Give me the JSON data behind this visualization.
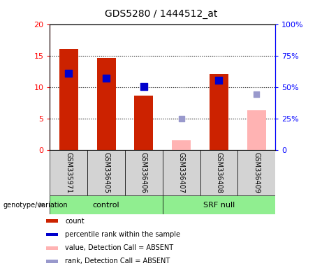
{
  "title": "GDS5280 / 1444512_at",
  "samples": [
    "GSM335971",
    "GSM336405",
    "GSM336406",
    "GSM336407",
    "GSM336408",
    "GSM336409"
  ],
  "bar_color_present": "#cc2200",
  "bar_color_absent": "#ffb3b3",
  "dot_color_present": "#0000cc",
  "dot_color_absent": "#9999cc",
  "count_present": [
    16.1,
    14.6,
    8.7,
    null,
    12.1,
    null
  ],
  "count_absent": [
    null,
    null,
    null,
    1.6,
    null,
    6.3
  ],
  "rank_present": [
    12.2,
    11.4,
    10.1,
    null,
    11.1,
    null
  ],
  "rank_absent": [
    null,
    null,
    null,
    5.0,
    null,
    8.9
  ],
  "ylim_left": [
    0,
    20
  ],
  "ylim_right": [
    0,
    100
  ],
  "yticks_left": [
    0,
    5,
    10,
    15,
    20
  ],
  "yticks_right": [
    0,
    25,
    50,
    75,
    100
  ],
  "ytick_labels_left": [
    "0",
    "5",
    "10",
    "15",
    "20"
  ],
  "ytick_labels_right": [
    "0",
    "25%",
    "50%",
    "75%",
    "100%"
  ],
  "bar_width": 0.5,
  "dot_size": 55,
  "dot_size_absent": 35,
  "legend_items": [
    {
      "label": "count",
      "color": "#cc2200"
    },
    {
      "label": "percentile rank within the sample",
      "color": "#0000cc"
    },
    {
      "label": "value, Detection Call = ABSENT",
      "color": "#ffb3b3"
    },
    {
      "label": "rank, Detection Call = ABSENT",
      "color": "#9999cc"
    }
  ]
}
